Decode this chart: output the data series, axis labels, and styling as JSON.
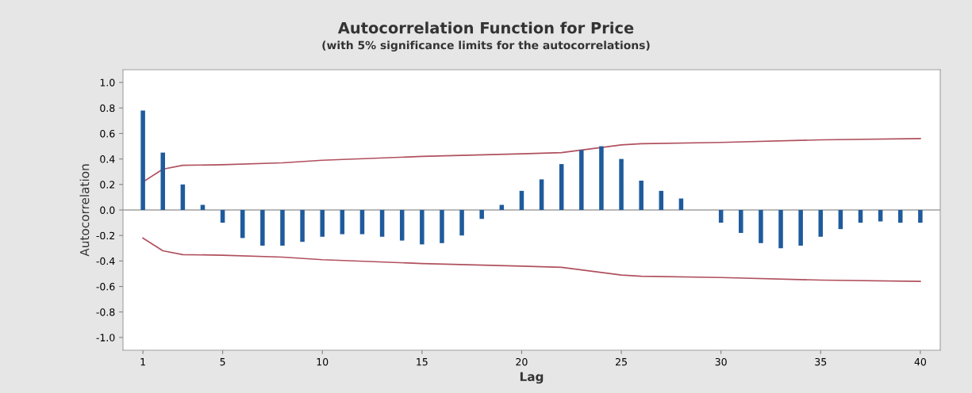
{
  "chart_data": {
    "type": "bar",
    "title": "Autocorrelation Function for Price",
    "subtitle": "(with 5% significance limits for the autocorrelations)",
    "xlabel": "Lag",
    "ylabel": "Autocorrelation",
    "series": [
      {
        "color": "#1f5b9c",
        "x": [
          1,
          2,
          3,
          4,
          5,
          6,
          7,
          8,
          9,
          10,
          11,
          12,
          13,
          14,
          15,
          16,
          17,
          18,
          19,
          20,
          21,
          22,
          23,
          24,
          25,
          26,
          27,
          28,
          29,
          30,
          31,
          32,
          33,
          34,
          35,
          36,
          37,
          38,
          39,
          40
        ],
        "values": [
          0.78,
          0.45,
          0.2,
          0.04,
          -0.1,
          -0.22,
          -0.28,
          -0.28,
          -0.25,
          -0.21,
          -0.19,
          -0.19,
          -0.21,
          -0.24,
          -0.27,
          -0.26,
          -0.2,
          -0.07,
          0.04,
          0.15,
          0.24,
          0.36,
          0.47,
          0.5,
          0.4,
          0.23,
          0.15,
          0.09,
          0.0,
          -0.1,
          -0.18,
          -0.26,
          -0.3,
          -0.28,
          -0.21,
          -0.15,
          -0.1,
          -0.09,
          -0.1,
          -0.1
        ]
      },
      {
        "type": "line",
        "color": "#b0505e",
        "x": [
          1,
          2,
          3,
          5,
          8,
          10,
          15,
          20,
          22,
          23,
          24,
          25,
          26,
          30,
          35,
          40
        ],
        "values": [
          0.22,
          0.32,
          0.35,
          0.355,
          0.37,
          0.39,
          0.42,
          0.44,
          0.45,
          0.47,
          0.49,
          0.51,
          0.52,
          0.53,
          0.55,
          0.56
        ]
      },
      {
        "type": "line",
        "color": "#b0505e",
        "x": [
          1,
          2,
          3,
          5,
          8,
          10,
          15,
          20,
          22,
          23,
          24,
          25,
          26,
          30,
          35,
          40
        ],
        "values": [
          -0.22,
          -0.32,
          -0.35,
          -0.355,
          -0.37,
          -0.39,
          -0.42,
          -0.44,
          -0.45,
          -0.47,
          -0.49,
          -0.51,
          -0.52,
          -0.53,
          -0.55,
          -0.56
        ]
      }
    ],
    "xlim": [
      0,
      41
    ],
    "xticks": [
      1,
      5,
      10,
      15,
      20,
      25,
      30,
      35,
      40
    ],
    "ylim": [
      -1.1,
      1.1
    ],
    "yticks": [
      {
        "value": -1.0,
        "label": "-1.0"
      },
      {
        "value": -0.8,
        "label": "-0.8"
      },
      {
        "value": -0.6,
        "label": "-0.6"
      },
      {
        "value": -0.4,
        "label": "-0.4"
      },
      {
        "value": -0.2,
        "label": "-0.2"
      },
      {
        "value": 0.0,
        "label": "0.0"
      },
      {
        "value": 0.2,
        "label": "0.2"
      },
      {
        "value": 0.4,
        "label": "0.4"
      },
      {
        "value": 0.6,
        "label": "0.6"
      },
      {
        "value": 0.8,
        "label": "0.8"
      },
      {
        "value": 1.0,
        "label": "1.0"
      }
    ],
    "ref_lines": [
      {
        "axis": "y",
        "value": 0,
        "color": "#a0a0a0"
      }
    ],
    "grid": false,
    "legend": false
  }
}
